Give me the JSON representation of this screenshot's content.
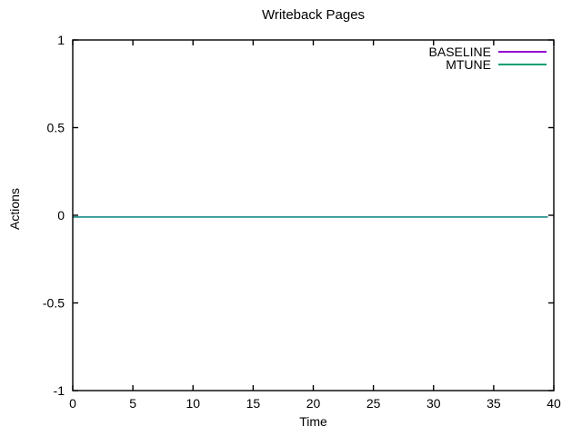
{
  "chart_data": {
    "type": "line",
    "title": "Writeback Pages",
    "xlabel": "Time",
    "ylabel": "Actions",
    "xlim": [
      0,
      40
    ],
    "ylim": [
      -1,
      1
    ],
    "xticks": [
      0,
      5,
      10,
      15,
      20,
      25,
      30,
      35,
      40
    ],
    "xtick_labels": [
      "0",
      "5",
      "10",
      "15",
      "20",
      "25",
      "30",
      "35",
      "40"
    ],
    "yticks": [
      -1,
      -0.5,
      0,
      0.5,
      1
    ],
    "ytick_labels": [
      "-1",
      "-0.5",
      "0",
      "0.5",
      "1"
    ],
    "grid": false,
    "legend_position": "top-right-inside",
    "background": "#ffffff",
    "axis_color": "#000000",
    "series": [
      {
        "name": "BASELINE",
        "color": "#9400d3",
        "x": [
          0,
          39.5
        ],
        "y": [
          -0.01,
          -0.01
        ]
      },
      {
        "name": "MTUNE",
        "color": "#009e73",
        "x": [
          0,
          39.5
        ],
        "y": [
          -0.01,
          -0.01
        ]
      }
    ]
  }
}
